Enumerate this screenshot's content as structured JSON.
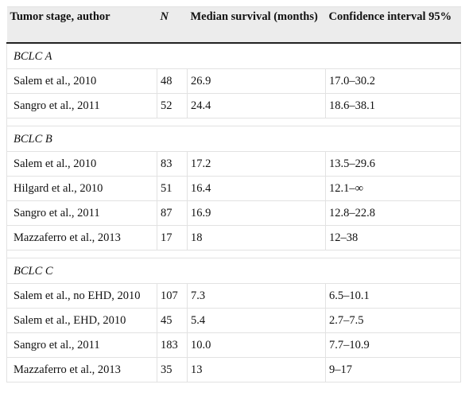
{
  "table": {
    "columns": [
      "Tumor stage, author",
      "N",
      "Median survival (months)",
      "Confidence interval 95%"
    ],
    "sections": [
      {
        "label": "BCLC A",
        "rows": [
          [
            "Salem et al., 2010",
            "48",
            "26.9",
            "17.0–30.2"
          ],
          [
            "Sangro et al., 2011",
            "52",
            "24.4",
            "18.6–38.1"
          ]
        ]
      },
      {
        "label": "BCLC B",
        "rows": [
          [
            "Salem et al., 2010",
            "83",
            "17.2",
            "13.5–29.6"
          ],
          [
            "Hilgard et al., 2010",
            "51",
            "16.4",
            "12.1–∞"
          ],
          [
            "Sangro et al., 2011",
            "87",
            "16.9",
            "12.8–22.8"
          ],
          [
            "Mazzaferro et al., 2013",
            "17",
            "18",
            "12–38"
          ]
        ]
      },
      {
        "label": "BCLC C",
        "rows": [
          [
            "Salem et al., no EHD, 2010",
            "107",
            "7.3",
            "6.5–10.1"
          ],
          [
            "Salem et al., EHD, 2010",
            "45",
            "5.4",
            "2.7–7.5"
          ],
          [
            "Sangro et al., 2011",
            "183",
            "10.0",
            "7.7–10.9"
          ],
          [
            "Mazzaferro et al., 2013",
            "35",
            "13",
            "9–17"
          ]
        ]
      }
    ]
  }
}
